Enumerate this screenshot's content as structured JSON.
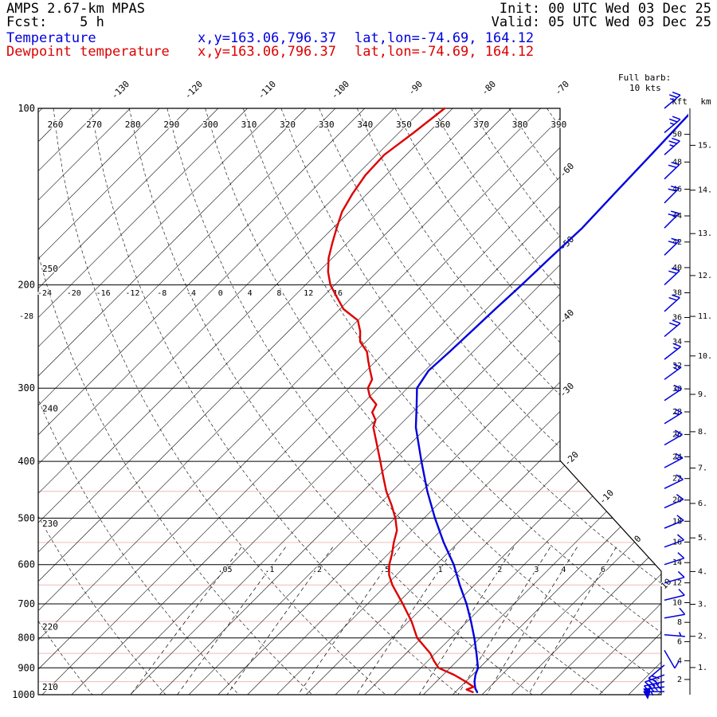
{
  "header": {
    "model_line": "AMPS 2.67-km MPAS",
    "fcst_line": "Fcst:    5 h",
    "init_line": "Init: 00 UTC Wed 03 Dec 25",
    "valid_line": "Valid: 05 UTC Wed 03 Dec 25"
  },
  "legend": {
    "temperature": {
      "label": "Temperature",
      "xy": "x,y=163.06,796.37",
      "latlon": "lat,lon=-74.69, 164.12",
      "color": "#0000dd"
    },
    "dewpoint": {
      "label": "Dewpoint temperature",
      "xy": "x,y=163.06,796.37",
      "latlon": "lat,lon=-74.69, 164.12",
      "color": "#dd0000"
    }
  },
  "barb_legend": {
    "line1": "Full barb:",
    "line2": "10 kts"
  },
  "height_axis": {
    "kft_header": "kft",
    "km_header": "km"
  },
  "chart_data": {
    "type": "skewt_log_p",
    "pressure_levels_hpa": [
      100,
      200,
      300,
      400,
      500,
      600,
      700,
      800,
      900,
      1000
    ],
    "pressure_minor_levels_hpa": [
      450,
      550,
      650,
      750,
      850,
      950
    ],
    "isotherm_step_c": 4,
    "isotherm_labels_top_c": [
      -130,
      -120,
      -110,
      -100,
      -90,
      -80,
      -70
    ],
    "isotherm_labels_right_c": [
      -60,
      -50,
      -40,
      -30,
      -20,
      -10,
      0,
      10
    ],
    "upper_temp_scale_c": [
      -24,
      -20,
      -16,
      -12,
      -8,
      -4,
      0,
      4,
      8,
      12,
      16
    ],
    "upper_temp_scale_extra": "-28",
    "dry_adiabats_k": [
      210,
      220,
      230,
      240,
      250,
      260,
      270,
      280,
      290,
      300,
      310,
      320,
      330,
      340,
      350,
      360,
      370,
      380,
      390
    ],
    "mixing_ratio_g_kg": [
      0.05,
      0.1,
      0.2,
      0.5,
      1,
      2,
      3,
      4,
      6
    ],
    "height_ticks_kft": [
      2,
      4,
      6,
      8,
      10,
      12,
      14,
      16,
      18,
      20,
      22,
      24,
      26,
      28,
      30,
      32,
      34,
      36,
      38,
      40,
      42,
      44,
      46,
      48,
      50
    ],
    "height_ticks_km": [
      1,
      2,
      3,
      4,
      5,
      6,
      7,
      8,
      9,
      10,
      11,
      12,
      13,
      14,
      15
    ],
    "full_barb_kts": 10,
    "temperature_profile": {
      "pressure_hpa": [
        990,
        975,
        950,
        925,
        900,
        850,
        800,
        750,
        700,
        650,
        600,
        550,
        500,
        450,
        400,
        350,
        320,
        300,
        280,
        260,
        240,
        220,
        200,
        180,
        160,
        140,
        120,
        100
      ],
      "temp_c": [
        -1.0,
        -1.8,
        -2.8,
        -3.6,
        -4.2,
        -6.4,
        -8.8,
        -11.5,
        -14.5,
        -18.0,
        -21.6,
        -26.0,
        -30.5,
        -35.2,
        -40.1,
        -45.5,
        -48.5,
        -50.7,
        -51.5,
        -51.2,
        -51.0,
        -50.8,
        -50.5,
        -50.3,
        -50.0,
        -50.3,
        -50.6,
        -51.0
      ]
    },
    "dewpoint_profile": {
      "pressure_hpa": [
        990,
        980,
        970,
        950,
        925,
        900,
        875,
        850,
        800,
        750,
        700,
        650,
        625,
        600,
        575,
        550,
        525,
        500,
        475,
        450,
        425,
        400,
        375,
        350,
        340,
        330,
        320,
        310,
        300,
        290,
        280,
        270,
        260,
        250,
        240,
        230,
        220,
        210,
        200,
        190,
        180,
        170,
        160,
        150,
        140,
        130,
        120,
        110,
        100
      ],
      "temp_c": [
        -1.6,
        -2.8,
        -2.2,
        -4.0,
        -6.5,
        -9.6,
        -11.2,
        -12.7,
        -16.6,
        -19.6,
        -23.2,
        -27.2,
        -29.0,
        -30.4,
        -31.5,
        -32.8,
        -34.0,
        -35.9,
        -38.2,
        -40.8,
        -43.2,
        -45.7,
        -48.4,
        -51.3,
        -52.0,
        -53.5,
        -54.0,
        -56.0,
        -57.4,
        -58.0,
        -59.5,
        -61.0,
        -62.5,
        -64.8,
        -66.2,
        -68.0,
        -71.5,
        -74.0,
        -76.6,
        -78.7,
        -80.5,
        -82.0,
        -83.5,
        -85.0,
        -86.0,
        -86.8,
        -87.0,
        -86.0,
        -85.1
      ]
    },
    "wind_barbs_right_column": [
      {
        "p": 100,
        "kts": 25,
        "dir_deg": 50
      },
      {
        "p": 110,
        "kts": 25,
        "dir_deg": 50
      },
      {
        "p": 120,
        "kts": 25,
        "dir_deg": 48
      },
      {
        "p": 132,
        "kts": 22,
        "dir_deg": 46
      },
      {
        "p": 145,
        "kts": 22,
        "dir_deg": 45
      },
      {
        "p": 160,
        "kts": 20,
        "dir_deg": 45
      },
      {
        "p": 178,
        "kts": 20,
        "dir_deg": 46
      },
      {
        "p": 200,
        "kts": 20,
        "dir_deg": 47
      },
      {
        "p": 222,
        "kts": 18,
        "dir_deg": 48
      },
      {
        "p": 245,
        "kts": 18,
        "dir_deg": 50
      },
      {
        "p": 268,
        "kts": 16,
        "dir_deg": 52
      },
      {
        "p": 290,
        "kts": 16,
        "dir_deg": 54
      },
      {
        "p": 315,
        "kts": 15,
        "dir_deg": 56
      },
      {
        "p": 345,
        "kts": 15,
        "dir_deg": 58
      },
      {
        "p": 375,
        "kts": 14,
        "dir_deg": 60
      },
      {
        "p": 410,
        "kts": 13,
        "dir_deg": 62
      },
      {
        "p": 445,
        "kts": 12,
        "dir_deg": 64
      },
      {
        "p": 480,
        "kts": 12,
        "dir_deg": 66
      },
      {
        "p": 520,
        "kts": 11,
        "dir_deg": 68
      },
      {
        "p": 560,
        "kts": 10,
        "dir_deg": 70
      },
      {
        "p": 600,
        "kts": 10,
        "dir_deg": 72
      },
      {
        "p": 645,
        "kts": 10,
        "dir_deg": 74
      },
      {
        "p": 690,
        "kts": 9,
        "dir_deg": 76
      },
      {
        "p": 740,
        "kts": 8,
        "dir_deg": 80
      },
      {
        "p": 790,
        "kts": 7,
        "dir_deg": 95
      },
      {
        "p": 840,
        "kts": 10,
        "dir_deg": 150
      },
      {
        "p": 890,
        "kts": 18,
        "dir_deg": 230
      },
      {
        "p": 925,
        "kts": 28,
        "dir_deg": 250
      },
      {
        "p": 950,
        "kts": 40,
        "dir_deg": 258
      },
      {
        "p": 970,
        "kts": 50,
        "dir_deg": 264
      },
      {
        "p": 988,
        "kts": 55,
        "dir_deg": 270
      }
    ]
  }
}
